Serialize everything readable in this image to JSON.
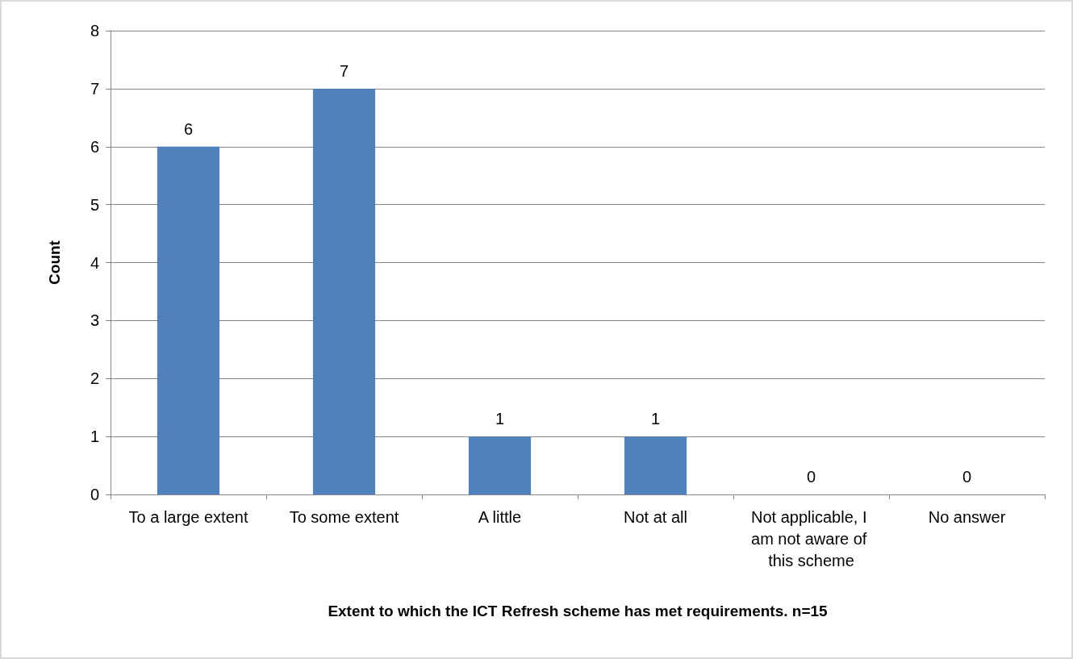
{
  "chart_data": {
    "type": "bar",
    "xlabel": "Extent to which the ICT Refresh scheme has met requirements. n=15",
    "ylabel": "Count",
    "categories": [
      "To a large extent",
      "To some extent",
      "A little",
      "Not at all",
      "Not applicable, I am not aware of this scheme",
      "No answer"
    ],
    "values": [
      6,
      7,
      1,
      1,
      0,
      0
    ],
    "color": "#4f81bd",
    "ylim": [
      0,
      8
    ],
    "yticks": [
      0,
      1,
      2,
      3,
      4,
      5,
      6,
      7,
      8
    ],
    "grid": "y",
    "data_labels": true
  }
}
